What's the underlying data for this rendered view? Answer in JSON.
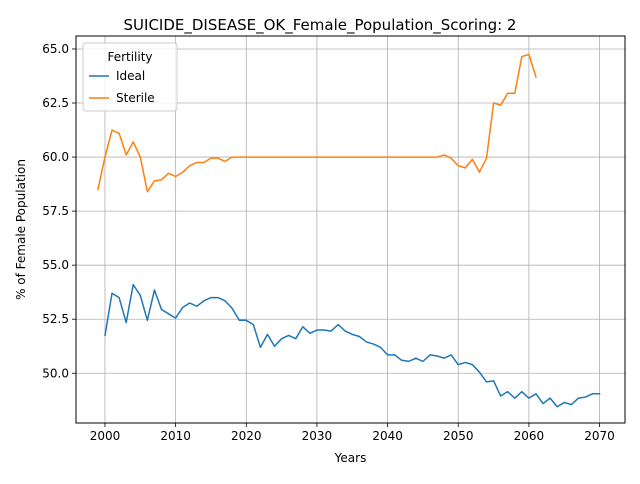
{
  "chart_data": {
    "type": "line",
    "title": "SUICIDE_DISEASE_OK_Female_Population_Scoring: 2",
    "xlabel": "Years",
    "ylabel": "% of Female Population",
    "xlim": [
      1995.9,
      2073.6
    ],
    "ylim": [
      47.7,
      65.6
    ],
    "xticks": [
      2000,
      2010,
      2020,
      2030,
      2040,
      2050,
      2060,
      2070
    ],
    "yticks": [
      50.0,
      52.5,
      55.0,
      57.5,
      60.0,
      62.5,
      65.0
    ],
    "ytick_labels": [
      "50.0",
      "52.5",
      "55.0",
      "57.5",
      "60.0",
      "62.5",
      "65.0"
    ],
    "grid": true,
    "legend": {
      "title": "Fertility",
      "position": "upper-left"
    },
    "series": [
      {
        "name": "Ideal",
        "color": "#1f77b4",
        "x": [
          2000,
          2001,
          2002,
          2003,
          2004,
          2005,
          2006,
          2007,
          2008,
          2009,
          2010,
          2011,
          2012,
          2013,
          2014,
          2015,
          2016,
          2017,
          2018,
          2019,
          2020,
          2021,
          2022,
          2023,
          2024,
          2025,
          2026,
          2027,
          2028,
          2029,
          2030,
          2031,
          2032,
          2033,
          2034,
          2035,
          2036,
          2037,
          2038,
          2039,
          2040,
          2041,
          2042,
          2043,
          2044,
          2045,
          2046,
          2047,
          2048,
          2049,
          2050,
          2051,
          2052,
          2053,
          2054,
          2055,
          2056,
          2057,
          2058,
          2059,
          2060,
          2061,
          2062,
          2063,
          2064,
          2065,
          2066,
          2067,
          2068,
          2069,
          2070
        ],
        "values": [
          51.75,
          53.7,
          53.5,
          52.35,
          54.1,
          53.6,
          52.45,
          53.85,
          52.95,
          52.75,
          52.55,
          53.05,
          53.25,
          53.1,
          53.35,
          53.5,
          53.5,
          53.35,
          53.0,
          52.45,
          52.45,
          52.25,
          51.2,
          51.8,
          51.25,
          51.6,
          51.75,
          51.6,
          52.15,
          51.85,
          52.0,
          52.0,
          51.95,
          52.25,
          51.95,
          51.8,
          51.7,
          51.45,
          51.35,
          51.2,
          50.85,
          50.85,
          50.6,
          50.55,
          50.7,
          50.55,
          50.85,
          50.8,
          50.7,
          50.85,
          50.4,
          50.5,
          50.4,
          50.05,
          49.6,
          49.65,
          48.95,
          49.15,
          48.85,
          49.15,
          48.85,
          49.05,
          48.6,
          48.85,
          48.45,
          48.65,
          48.55,
          48.85,
          48.9,
          49.05,
          49.05
        ]
      },
      {
        "name": "Sterile",
        "color": "#ff7f0e",
        "x": [
          1999,
          2000,
          2001,
          2002,
          2003,
          2004,
          2005,
          2006,
          2007,
          2008,
          2009,
          2010,
          2011,
          2012,
          2013,
          2014,
          2015,
          2016,
          2017,
          2018,
          2019,
          2020,
          2021,
          2022,
          2023,
          2024,
          2025,
          2026,
          2027,
          2028,
          2029,
          2030,
          2031,
          2032,
          2033,
          2034,
          2035,
          2036,
          2037,
          2038,
          2039,
          2040,
          2041,
          2042,
          2043,
          2044,
          2045,
          2046,
          2047,
          2048,
          2049,
          2050,
          2051,
          2052,
          2053,
          2054,
          2055,
          2056,
          2057,
          2058,
          2059,
          2060,
          2061
        ],
        "values": [
          58.5,
          60.0,
          61.25,
          61.1,
          60.1,
          60.7,
          60.0,
          58.4,
          58.9,
          58.95,
          59.25,
          59.1,
          59.3,
          59.6,
          59.75,
          59.75,
          59.95,
          59.95,
          59.8,
          60.0,
          60.0,
          60.0,
          60.0,
          60.0,
          60.0,
          60.0,
          60.0,
          60.0,
          60.0,
          60.0,
          60.0,
          60.0,
          60.0,
          60.0,
          60.0,
          60.0,
          60.0,
          60.0,
          60.0,
          60.0,
          60.0,
          60.0,
          60.0,
          60.0,
          60.0,
          60.0,
          60.0,
          60.0,
          60.0,
          60.1,
          59.95,
          59.6,
          59.5,
          59.9,
          59.3,
          59.95,
          62.5,
          62.4,
          62.95,
          62.95,
          64.65,
          64.75,
          63.7
        ]
      }
    ]
  }
}
